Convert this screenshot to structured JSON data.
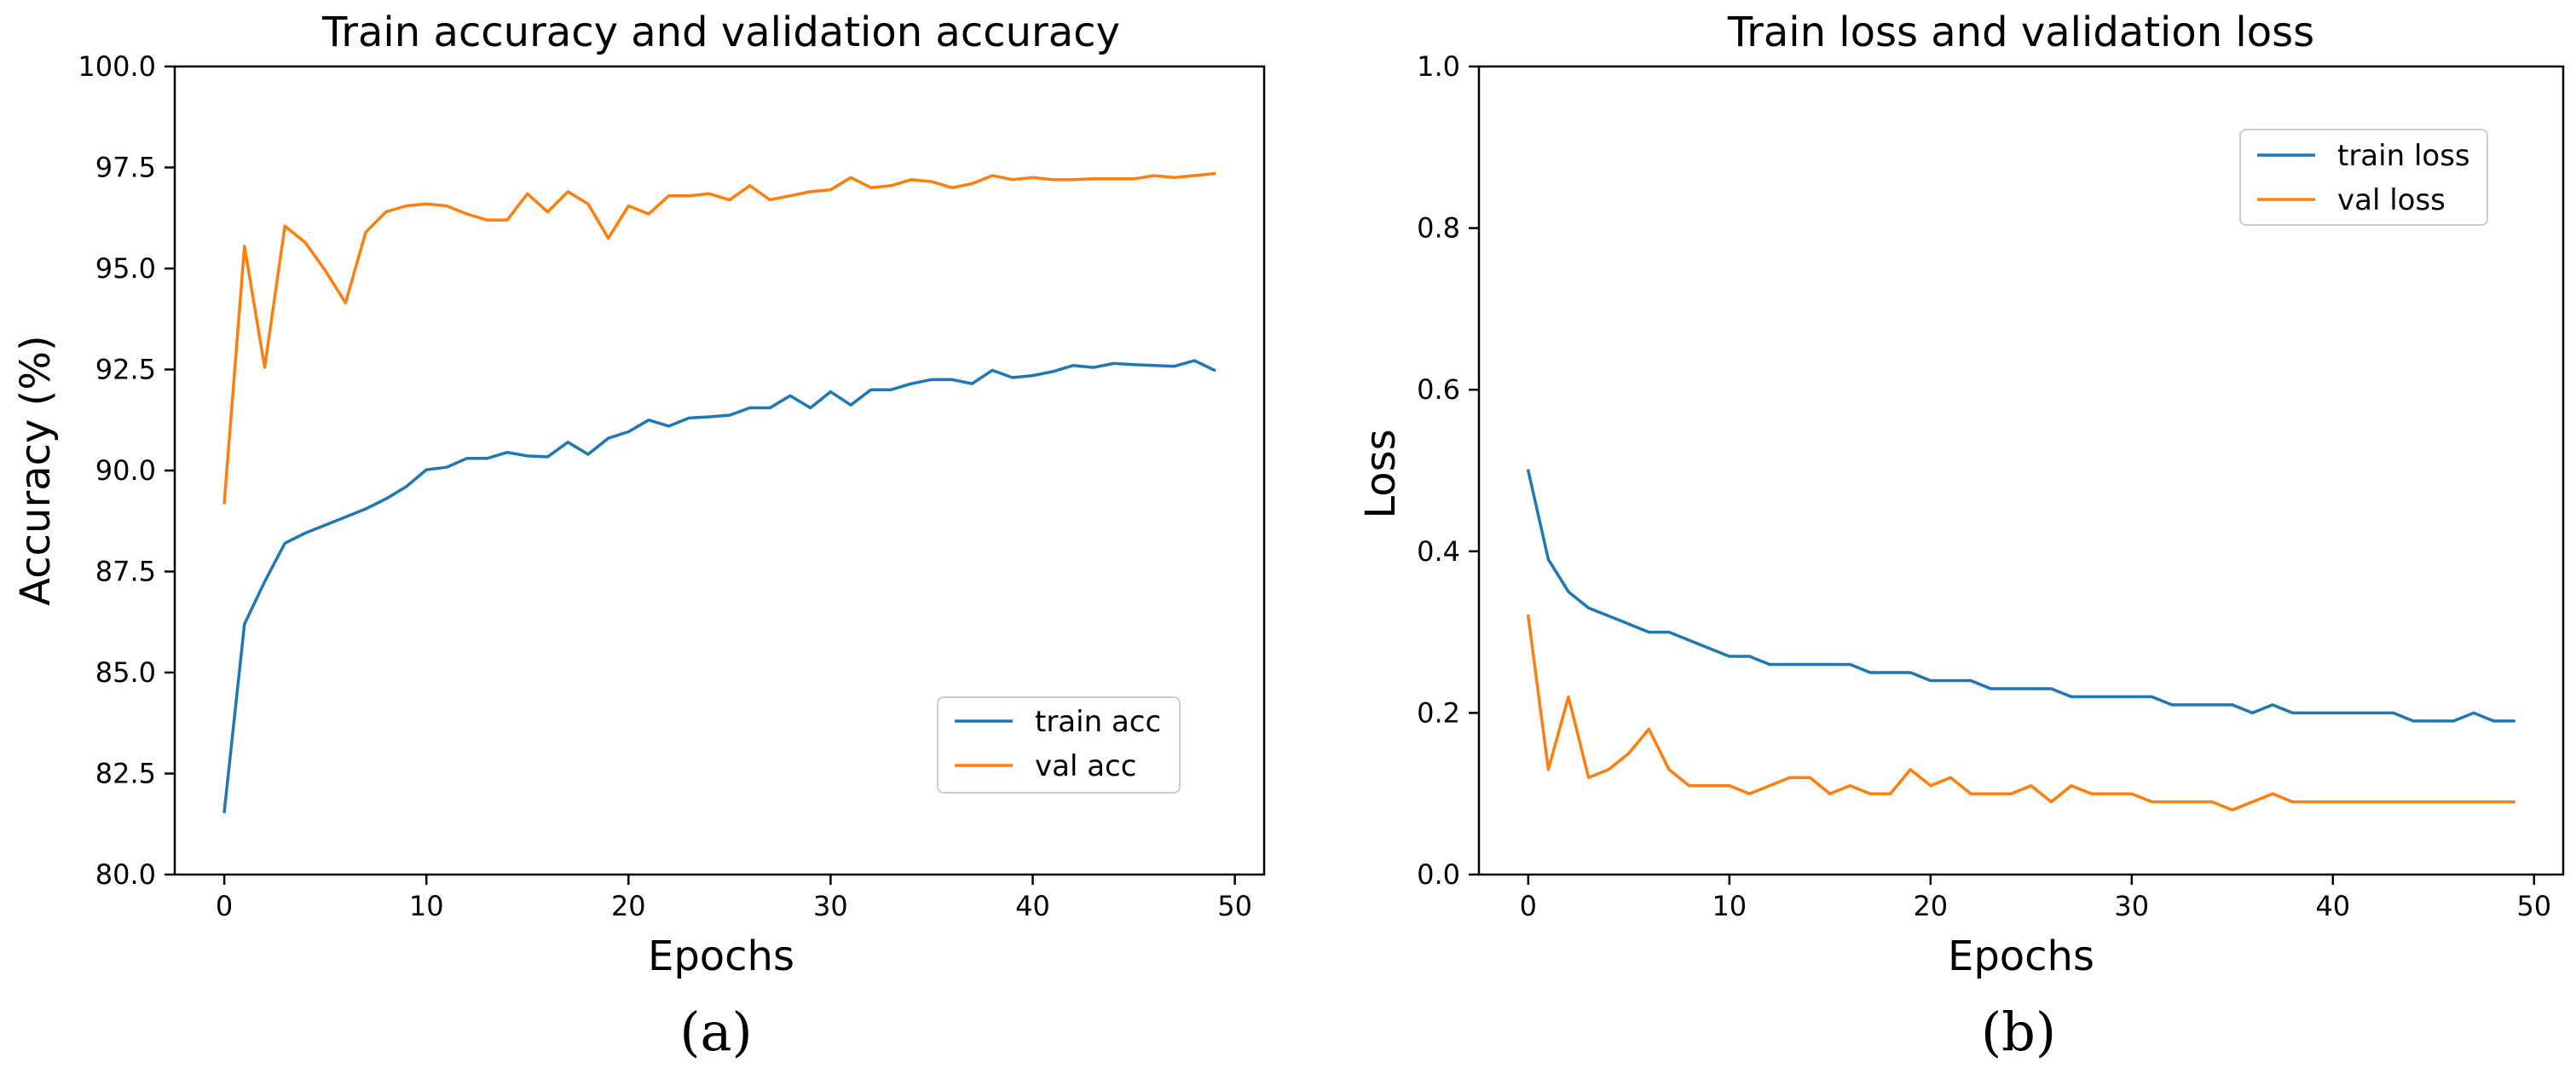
{
  "colors": {
    "train": "#1f77b4",
    "val": "#ff7f0e"
  },
  "chart_data": [
    {
      "type": "line",
      "title": "Train accuracy and validation accuracy",
      "xlabel": "Epochs",
      "ylabel": "Accuracy (%)",
      "caption": "(a)",
      "xlim": [
        -2.45,
        51.45
      ],
      "ylim": [
        80.0,
        100.0
      ],
      "xticks": [
        0,
        10,
        20,
        30,
        40,
        50
      ],
      "yticks": [
        80.0,
        82.5,
        85.0,
        87.5,
        90.0,
        92.5,
        95.0,
        97.5,
        100.0
      ],
      "ytick_labels": [
        "80.0",
        "82.5",
        "85.0",
        "87.5",
        "90.0",
        "92.5",
        "95.0",
        "97.5",
        "100.0"
      ],
      "legend_position": "lower-right",
      "series": [
        {
          "name": "train acc",
          "color_key": "train",
          "values": [
            81.55,
            86.2,
            87.25,
            88.2,
            88.45,
            88.65,
            88.85,
            89.05,
            89.3,
            89.6,
            90.02,
            90.08,
            90.3,
            90.3,
            90.45,
            90.36,
            90.34,
            90.7,
            90.4,
            90.8,
            90.96,
            91.25,
            91.1,
            91.3,
            91.33,
            91.37,
            91.55,
            91.55,
            91.85,
            91.55,
            91.95,
            91.62,
            92.0,
            92.0,
            92.15,
            92.25,
            92.25,
            92.15,
            92.48,
            92.3,
            92.35,
            92.45,
            92.6,
            92.55,
            92.65,
            92.62,
            92.6,
            92.58,
            92.72,
            92.48
          ]
        },
        {
          "name": "val acc",
          "color_key": "val",
          "values": [
            89.2,
            95.55,
            92.55,
            96.05,
            95.65,
            94.95,
            94.15,
            95.9,
            96.4,
            96.55,
            96.6,
            96.55,
            96.35,
            96.2,
            96.2,
            96.85,
            96.4,
            96.9,
            96.6,
            95.75,
            96.55,
            96.35,
            96.8,
            96.8,
            96.85,
            96.7,
            97.05,
            96.7,
            96.8,
            96.9,
            96.95,
            97.25,
            97.0,
            97.05,
            97.2,
            97.15,
            97.0,
            97.1,
            97.3,
            97.2,
            97.25,
            97.2,
            97.2,
            97.22,
            97.22,
            97.22,
            97.3,
            97.25,
            97.3,
            97.35
          ]
        }
      ]
    },
    {
      "type": "line",
      "title": "Train loss and validation loss",
      "xlabel": "Epochs",
      "ylabel": "Loss",
      "caption": "(b)",
      "xlim": [
        -2.45,
        51.45
      ],
      "ylim": [
        0.0,
        1.0
      ],
      "xticks": [
        0,
        10,
        20,
        30,
        40,
        50
      ],
      "yticks": [
        0.0,
        0.2,
        0.4,
        0.6,
        0.8,
        1.0
      ],
      "ytick_labels": [
        "0.0",
        "0.2",
        "0.4",
        "0.6",
        "0.8",
        "1.0"
      ],
      "legend_position": "upper-right",
      "series": [
        {
          "name": "train loss",
          "color_key": "train",
          "values": [
            0.5,
            0.39,
            0.35,
            0.33,
            0.32,
            0.31,
            0.3,
            0.3,
            0.29,
            0.28,
            0.27,
            0.27,
            0.26,
            0.26,
            0.26,
            0.26,
            0.26,
            0.25,
            0.25,
            0.25,
            0.24,
            0.24,
            0.24,
            0.23,
            0.23,
            0.23,
            0.23,
            0.22,
            0.22,
            0.22,
            0.22,
            0.22,
            0.21,
            0.21,
            0.21,
            0.21,
            0.2,
            0.21,
            0.2,
            0.2,
            0.2,
            0.2,
            0.2,
            0.2,
            0.19,
            0.19,
            0.19,
            0.2,
            0.19,
            0.19
          ]
        },
        {
          "name": "val loss",
          "color_key": "val",
          "values": [
            0.32,
            0.13,
            0.22,
            0.12,
            0.13,
            0.15,
            0.18,
            0.13,
            0.11,
            0.11,
            0.11,
            0.1,
            0.11,
            0.12,
            0.12,
            0.1,
            0.11,
            0.1,
            0.1,
            0.13,
            0.11,
            0.12,
            0.1,
            0.1,
            0.1,
            0.11,
            0.09,
            0.11,
            0.1,
            0.1,
            0.1,
            0.09,
            0.09,
            0.09,
            0.09,
            0.08,
            0.09,
            0.1,
            0.09,
            0.09,
            0.09,
            0.09,
            0.09,
            0.09,
            0.09,
            0.09,
            0.09,
            0.09,
            0.09,
            0.09
          ]
        }
      ]
    }
  ]
}
